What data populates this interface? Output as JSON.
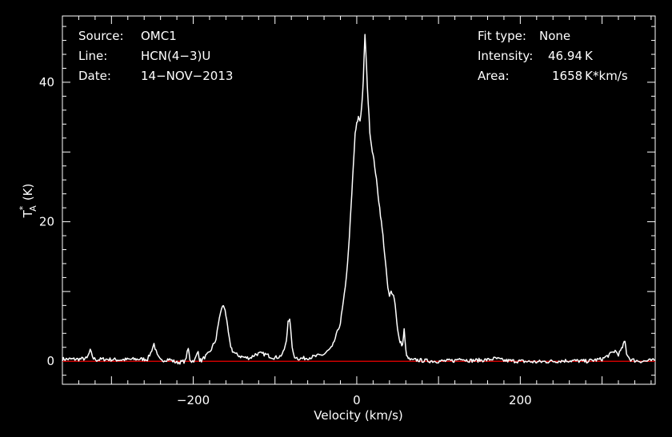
{
  "chart_data": {
    "type": "line",
    "xlabel": "Velocity (km/s)",
    "ylabel": {
      "main": "T",
      "sup": "*",
      "sub": "A",
      "unit": "(K)"
    },
    "xlim": [
      -360,
      365
    ],
    "ylim": [
      -3.3,
      49.5
    ],
    "xticks": [
      -200,
      0,
      200
    ],
    "yticks": [
      0,
      20,
      40
    ],
    "grid": false,
    "background": "#000000",
    "colors": {
      "spectrum": "#ffffff",
      "baseline": "#cc0000",
      "axes": "#ffffff"
    },
    "baseline_value": 0,
    "series": [
      {
        "x": [
          -360,
          -340,
          -330,
          -326,
          -322,
          -318,
          -310,
          -290,
          -270,
          -256,
          -252,
          -248,
          -244,
          -240,
          -230,
          -220,
          -210,
          -206,
          -204,
          -202,
          -198,
          -194,
          -192,
          -190,
          -186,
          -180,
          -172,
          -168,
          -164,
          -161,
          -158,
          -155,
          -152,
          -148,
          -142,
          -136,
          -130,
          -124,
          -118,
          -112,
          -106,
          -100,
          -94,
          -90,
          -86,
          -84,
          -82,
          -80,
          -78,
          -76,
          -72,
          -66,
          -60,
          -50,
          -40,
          -30,
          -20,
          -14,
          -10,
          -8,
          -6,
          -4,
          -2,
          0,
          2,
          4,
          6,
          8,
          10,
          12,
          14,
          16,
          18,
          20,
          22,
          24,
          26,
          28,
          30,
          32,
          34,
          36,
          38,
          40,
          42,
          44,
          46,
          48,
          50,
          52,
          54,
          56,
          58,
          60,
          62,
          64,
          68,
          72,
          80,
          100,
          120,
          128,
          132,
          140,
          160,
          170,
          180,
          200,
          220,
          240,
          260,
          280,
          300,
          310,
          316,
          320,
          324,
          326,
          328,
          330,
          334,
          340,
          350,
          360,
          365
        ],
        "y": [
          0.3,
          0.3,
          0.4,
          1.5,
          0.4,
          0.2,
          0.3,
          0.2,
          0.3,
          0.3,
          1.2,
          2.5,
          0.8,
          0.1,
          0.3,
          -0.2,
          0.0,
          1.8,
          0.3,
          0.0,
          0.2,
          1.4,
          0.2,
          0.1,
          0.6,
          1.2,
          3.2,
          6.3,
          8.0,
          7.5,
          4.8,
          2.5,
          1.5,
          1.0,
          0.7,
          0.5,
          0.5,
          1.0,
          1.1,
          1.0,
          0.7,
          0.5,
          0.7,
          1.2,
          2.8,
          5.8,
          6.2,
          3.2,
          1.2,
          0.7,
          0.4,
          0.4,
          0.5,
          0.7,
          1.0,
          2.0,
          5.5,
          10.5,
          16.0,
          20.0,
          24.0,
          28.5,
          32.5,
          34.0,
          35.0,
          34.5,
          36.5,
          40.0,
          46.94,
          42.0,
          37.0,
          33.0,
          31.0,
          29.5,
          28.0,
          26.0,
          24.0,
          22.0,
          20.0,
          18.0,
          15.5,
          13.0,
          10.5,
          9.2,
          10.0,
          9.8,
          9.0,
          7.0,
          4.5,
          3.0,
          2.6,
          2.3,
          4.5,
          1.5,
          0.5,
          0.3,
          0.1,
          0.2,
          0.1,
          0.0,
          0.1,
          0.5,
          0.2,
          0.1,
          0.2,
          0.4,
          0.1,
          0.0,
          -0.1,
          0.0,
          0.1,
          0.0,
          0.3,
          1.0,
          1.5,
          1.0,
          1.7,
          2.4,
          2.8,
          1.2,
          0.3,
          0.1,
          0.0,
          0.1,
          0.1
        ]
      }
    ]
  },
  "info_left": [
    {
      "label": "Source:",
      "value": "OMC1"
    },
    {
      "label": "Line:",
      "value": "HCN(4−3)U"
    },
    {
      "label": "Date:",
      "value": "14−NOV−2013"
    }
  ],
  "info_right": [
    {
      "label": "Fit type:",
      "value": "None"
    },
    {
      "label": "Intensity:",
      "value": "46.94 K"
    },
    {
      "label": "Area:",
      "value": "1658 K*km/s"
    }
  ]
}
